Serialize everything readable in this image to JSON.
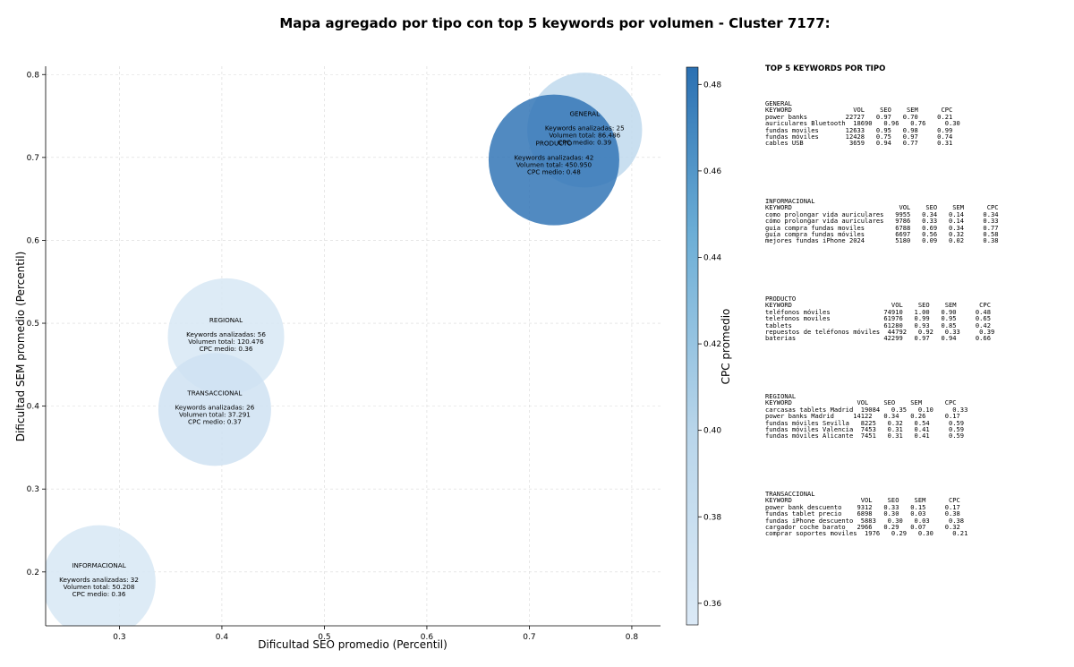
{
  "chart_data": {
    "type": "scatter",
    "title": "Mapa agregado por tipo con top 5 keywords por volumen - Cluster 7177:",
    "xlabel": "Dificultad SEO promedio (Percentil)",
    "ylabel": "Dificultad SEM promedio (Percentil)",
    "xlim": [
      0.228,
      0.828
    ],
    "ylim": [
      0.135,
      0.81
    ],
    "xticks": [
      "0.3",
      "0.4",
      "0.5",
      "0.6",
      "0.7",
      "0.8"
    ],
    "yticks": [
      "0.2",
      "0.3",
      "0.4",
      "0.5",
      "0.6",
      "0.7",
      "0.8"
    ],
    "grid": true,
    "colorbar": {
      "label": "CPC promedio",
      "min": 0.355,
      "max": 0.484,
      "ticks": [
        "0.36",
        "0.38",
        "0.40",
        "0.42",
        "0.44",
        "0.46",
        "0.48"
      ],
      "color_low": "#dbe9f6",
      "color_high": "#2b70b2"
    },
    "points": [
      {
        "name": "GENERAL",
        "x": 0.754,
        "y": 0.733,
        "cpc": 0.39,
        "keywords": "Keywords analizadas: 25",
        "volume": "Volumen total: 86.486",
        "cpc_label": "CPC medio: 0.39",
        "size": 86486
      },
      {
        "name": "PRODUCTO",
        "x": 0.724,
        "y": 0.697,
        "cpc": 0.48,
        "keywords": "Keywords analizadas: 42",
        "volume": "Volumen total: 450.950",
        "cpc_label": "CPC medio: 0.48",
        "size": 450950
      },
      {
        "name": "REGIONAL",
        "x": 0.404,
        "y": 0.484,
        "cpc": 0.36,
        "keywords": "Keywords analizadas: 56",
        "volume": "Volumen total: 120.476",
        "cpc_label": "CPC medio: 0.36",
        "size": 120476
      },
      {
        "name": "TRANSACCIONAL",
        "x": 0.393,
        "y": 0.396,
        "cpc": 0.37,
        "keywords": "Keywords analizadas: 26",
        "volume": "Volumen total: 37.291",
        "cpc_label": "CPC medio: 0.37",
        "size": 37291
      },
      {
        "name": "INFORMACIONAL",
        "x": 0.28,
        "y": 0.188,
        "cpc": 0.36,
        "keywords": "Keywords analizadas: 32",
        "volume": "Volumen total: 50.208",
        "cpc_label": "CPC medio: 0.36",
        "size": 50208
      }
    ]
  },
  "side_panel": {
    "title": "TOP 5 KEYWORDS POR TIPO",
    "blocks": [
      {
        "name": "GENERAL",
        "text": "GENERAL\nKEYWORD                VOL    SEO    SEM      CPC\npower banks          22727   0.97   0.70     0.21\nauriculares Bluetooth  18690   0.96   0.76     0.30\nfundas moviles       12633   0.95   0.98     0.99\nfundas móviles       12428   0.75   0.97     0.74\ncables USB            3659   0.94   0.77     0.31"
      },
      {
        "name": "INFORMACIONAL",
        "text": "INFORMACIONAL\nKEYWORD                            VOL    SEO    SEM      CPC\ncomo prolongar vida auriculares   9955   0.34   0.14     0.34\ncómo prolongar vida auriculares   9786   0.33   0.14     0.33\nguia compra fundas moviles        6788   0.69   0.34     0.77\nguía compra fundas móviles        6697   0.56   0.32     0.58\nmejores fundas iPhone 2024        5180   0.09   0.02     0.38"
      },
      {
        "name": "PRODUCTO",
        "text": "PRODUCTO\nKEYWORD                          VOL    SEO    SEM      CPC\nteléfonos móviles              74910   1.00   0.90     0.48\ntelefonos moviles              61976   0.99   0.95     0.65\ntablets                        61280   0.93   0.85     0.42\nrepuestos de teléfonos móviles  44792   0.92   0.33     0.39\nbaterias                       42299   0.97   0.94     0.66"
      },
      {
        "name": "REGIONAL",
        "text": "REGIONAL\nKEYWORD                 VOL    SEO    SEM      CPC\ncarcasas tablets Madrid  19084   0.35   0.10     0.33\npower banks Madrid     14122   0.34   0.26     0.17\nfundas móviles Sevilla   8225   0.32   0.54     0.59\nfundas móviles Valencia  7453   0.31   0.41     0.59\nfundas móviles Alicante  7451   0.31   0.41     0.59"
      },
      {
        "name": "TRANSACCIONAL",
        "text": "TRANSACCIONAL\nKEYWORD                  VOL    SEO    SEM      CPC\npower bank descuento    9312   0.33   0.15     0.17\nfundas tablet precio    6898   0.30   0.03     0.38\nfundas iPhone descuento  5883   0.30   0.03     0.38\ncargador coche barato   2966   0.29   0.07     0.32\ncomprar soportes moviles  1976   0.29   0.30     0.21"
      }
    ]
  }
}
